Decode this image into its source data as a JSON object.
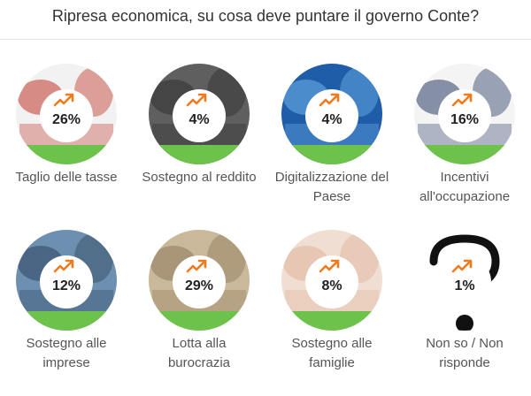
{
  "title": "Ripresa economica, su cosa deve puntare il governo Conte?",
  "colors": {
    "accent": "#f07a1c",
    "green": "#6cc24a",
    "text": "#555555",
    "value": "#222222"
  },
  "chart_data": {
    "type": "bar",
    "title": "Ripresa economica, su cosa deve puntare il governo Conte?",
    "unit": "%",
    "categories": [
      "Taglio delle tasse",
      "Sostegno al reddito",
      "Digitalizzazione del Paese",
      "Incentivi all'occupazione",
      "Sostegno alle imprese",
      "Lotta alla burocrazia",
      "Sostegno alle famiglie",
      "Non so / Non risponde"
    ],
    "values": [
      26,
      4,
      4,
      16,
      12,
      29,
      8,
      1
    ],
    "value_labels": [
      "26%",
      "4%",
      "4%",
      "16%",
      "12%",
      "29%",
      "8%",
      "1%"
    ],
    "label_lines": [
      [
        "Taglio delle tasse"
      ],
      [
        "Sostegno al reddito"
      ],
      [
        "Digitalizzazione del",
        "Paese"
      ],
      [
        "Incentivi",
        "all'occupazione"
      ],
      [
        "Sostegno alle",
        "imprese"
      ],
      [
        "Lotta alla",
        "burocrazia"
      ],
      [
        "Sostegno alle",
        "famiglie"
      ],
      [
        "Non so / Non",
        "risponde"
      ]
    ],
    "icons": [
      "tax-cut-photo-icon",
      "income-support-photo-icon",
      "digitalization-photo-icon",
      "employment-photo-icon",
      "business-support-photo-icon",
      "bureaucracy-photo-icon",
      "family-support-photo-icon",
      "question-mark-icon"
    ],
    "icon_palettes": [
      {
        "bg": "#f2f2f2",
        "fg": "#c0392b"
      },
      {
        "bg": "#5f5f5f",
        "fg": "#2f2f2f"
      },
      {
        "bg": "#1f5da8",
        "fg": "#6fb3ea"
      },
      {
        "bg": "#f4f4f4",
        "fg": "#2a3d66"
      },
      {
        "bg": "#6d8fb0",
        "fg": "#2e4660"
      },
      {
        "bg": "#c9b89a",
        "fg": "#8e7a5c"
      },
      {
        "bg": "#f0ded2",
        "fg": "#e0b29a"
      },
      {
        "bg": "#ffffff",
        "fg": "#111111"
      }
    ]
  }
}
